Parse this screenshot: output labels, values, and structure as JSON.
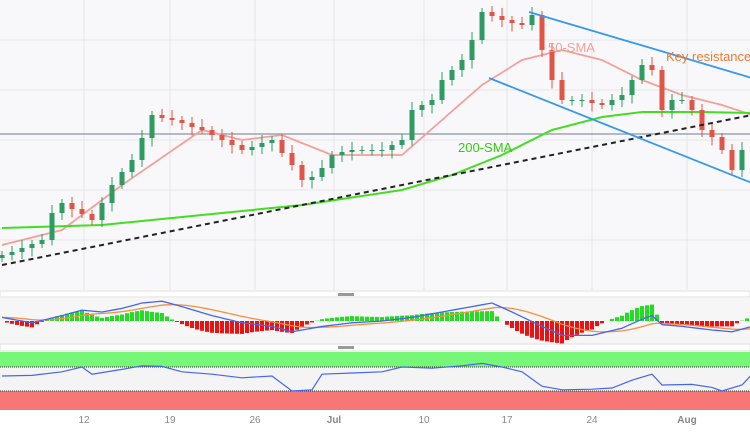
{
  "chart_data": {
    "type": "candlestick",
    "x_unit": "candle index",
    "x_tick_labels": [
      {
        "label": "12",
        "at": 8.2
      },
      {
        "label": "19",
        "at": 16.8
      },
      {
        "label": "26",
        "at": 25.3
      },
      {
        "label": "Jul",
        "at": 33.2
      },
      {
        "label": "10",
        "at": 42.2
      },
      {
        "label": "17",
        "at": 50.5
      },
      {
        "label": "24",
        "at": 59
      },
      {
        "label": "Aug",
        "at": 68.5
      }
    ],
    "closes": [
      35,
      38,
      42,
      46,
      50,
      77,
      87,
      81,
      76,
      70,
      87,
      105,
      118,
      130,
      152,
      175,
      172,
      170,
      167,
      163,
      160,
      155,
      150,
      145,
      140,
      143,
      147,
      150,
      137,
      125,
      110,
      113,
      122,
      135,
      138,
      140,
      140,
      140,
      140,
      145,
      150,
      180,
      185,
      190,
      210,
      220,
      230,
      250,
      278,
      274,
      270,
      267,
      265,
      275,
      240,
      210,
      190,
      190,
      190,
      187,
      185,
      190,
      195,
      210,
      225,
      220,
      180,
      190,
      190,
      180,
      160,
      153,
      140,
      120,
      140
    ],
    "sma50": {
      "label": "50-SMA",
      "color": "#f4a09a",
      "points": [
        [
          0,
          45
        ],
        [
          6,
          60
        ],
        [
          12,
          105
        ],
        [
          20,
          160
        ],
        [
          24,
          150
        ],
        [
          28,
          155
        ],
        [
          33,
          135
        ],
        [
          40,
          135
        ],
        [
          44,
          170
        ],
        [
          48,
          205
        ],
        [
          52,
          230
        ],
        [
          56,
          240
        ],
        [
          60,
          230
        ],
        [
          64,
          210
        ],
        [
          68,
          195
        ],
        [
          72,
          185
        ],
        [
          75,
          175
        ]
      ]
    },
    "sma200": {
      "label": "200-SMA",
      "color": "#44dd22",
      "points": [
        [
          0,
          62
        ],
        [
          10,
          65
        ],
        [
          20,
          75
        ],
        [
          30,
          85
        ],
        [
          40,
          100
        ],
        [
          45,
          115
        ],
        [
          50,
          135
        ],
        [
          55,
          160
        ],
        [
          60,
          173
        ],
        [
          64,
          178
        ],
        [
          70,
          178
        ],
        [
          75,
          177
        ]
      ]
    },
    "trendline": {
      "style": "dashed",
      "color": "#222222",
      "points": [
        [
          0,
          25
        ],
        [
          75,
          175
        ]
      ]
    },
    "channel_upper": {
      "color": "#3399ee",
      "points": [
        [
          52.7,
          278
        ],
        [
          75,
          212
        ]
      ]
    },
    "channel_lower": {
      "color": "#3399ee",
      "points": [
        [
          48.7,
          212
        ],
        [
          75,
          107
        ]
      ]
    },
    "horizontal_level": 156,
    "annotation": {
      "text": "Key resistance",
      "color": "#f07a30"
    },
    "macd": {
      "macd_color": "#4466ee",
      "signal_color": "#f59040",
      "hist_up_color": "#22dd22",
      "hist_down_color": "#ee1111",
      "points": [
        [
          0,
          2
        ],
        [
          3,
          -1
        ],
        [
          6,
          3
        ],
        [
          8,
          6
        ],
        [
          10,
          5
        ],
        [
          12,
          7
        ],
        [
          14,
          10
        ],
        [
          16,
          11
        ],
        [
          18,
          8
        ],
        [
          21,
          3
        ],
        [
          24,
          -1
        ],
        [
          27,
          -3
        ],
        [
          29,
          -6
        ],
        [
          32,
          -3
        ],
        [
          35,
          -1
        ],
        [
          38,
          0
        ],
        [
          41,
          2
        ],
        [
          44,
          5
        ],
        [
          47,
          8
        ],
        [
          49,
          10
        ],
        [
          51,
          5
        ],
        [
          54,
          -3
        ],
        [
          56,
          -8
        ],
        [
          59,
          -8
        ],
        [
          62,
          -4
        ],
        [
          64,
          1
        ],
        [
          65,
          3
        ],
        [
          66,
          -2
        ],
        [
          68,
          -3
        ],
        [
          71,
          -5
        ],
        [
          73,
          -6
        ],
        [
          75,
          -3
        ]
      ]
    },
    "rsi": {
      "line_color": "#4466ee",
      "overbought_color": "#77f777",
      "oversold_color": "#f77777",
      "upper": 70,
      "lower": 30,
      "points": [
        [
          0,
          55
        ],
        [
          3,
          56
        ],
        [
          6,
          62
        ],
        [
          8,
          70
        ],
        [
          9,
          58
        ],
        [
          12,
          66
        ],
        [
          14,
          72
        ],
        [
          16,
          71
        ],
        [
          18,
          62
        ],
        [
          21,
          58
        ],
        [
          24,
          52
        ],
        [
          27,
          55
        ],
        [
          29,
          30
        ],
        [
          31,
          32
        ],
        [
          32,
          58
        ],
        [
          35,
          60
        ],
        [
          38,
          62
        ],
        [
          40,
          70
        ],
        [
          43,
          68
        ],
        [
          46,
          72
        ],
        [
          48,
          76
        ],
        [
          50,
          70
        ],
        [
          52,
          62
        ],
        [
          54,
          38
        ],
        [
          56,
          32
        ],
        [
          59,
          33
        ],
        [
          61,
          35
        ],
        [
          63,
          48
        ],
        [
          65,
          58
        ],
        [
          66,
          40
        ],
        [
          69,
          41
        ],
        [
          71,
          36
        ],
        [
          72,
          30
        ],
        [
          74,
          40
        ],
        [
          75,
          58
        ]
      ]
    }
  }
}
